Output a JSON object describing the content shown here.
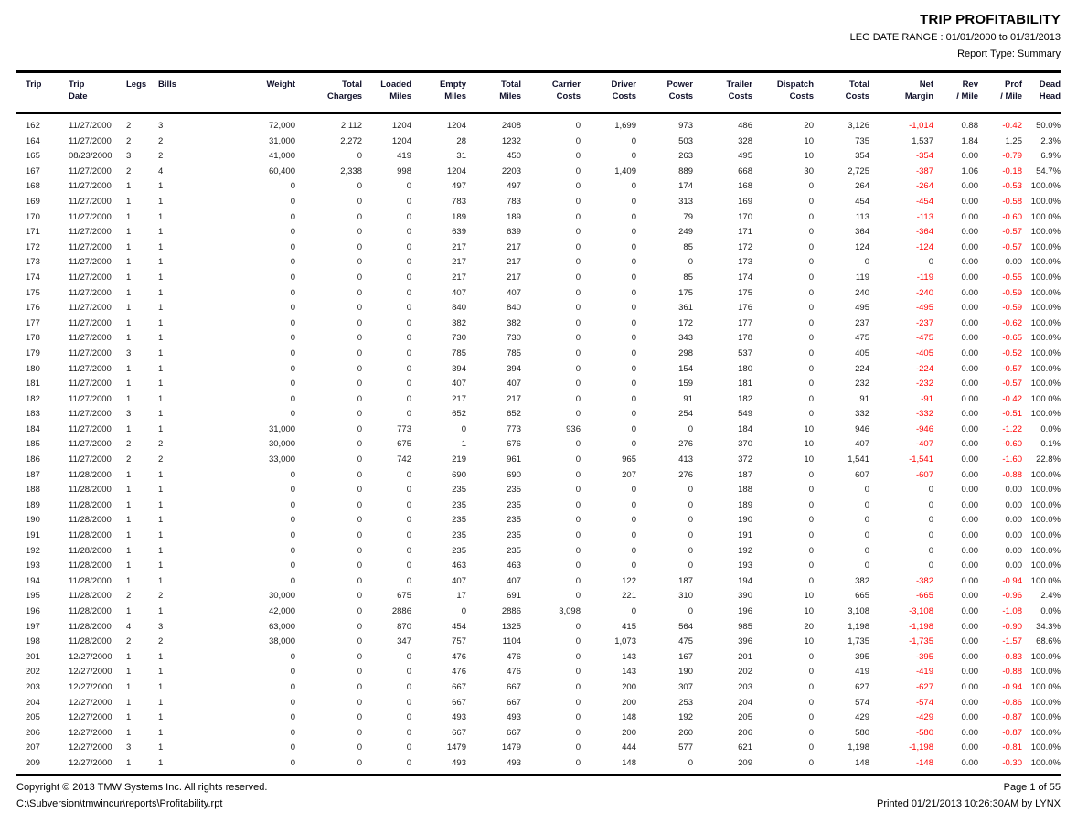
{
  "header": {
    "title": "TRIP PROFITABILITY",
    "date_range": "LEG DATE RANGE : 01/01/2000 to 01/31/2013",
    "report_type": "Report Type: Summary"
  },
  "colors": {
    "negative_value": "#ff0000",
    "text": "#1a1a1a",
    "rule": "#000000"
  },
  "table": {
    "columns": [
      {
        "line1": "Trip",
        "line2": ""
      },
      {
        "line1": "Trip",
        "line2": "Date"
      },
      {
        "line1": "Legs",
        "line2": ""
      },
      {
        "line1": "Bills",
        "line2": ""
      },
      {
        "line1": "Weight",
        "line2": ""
      },
      {
        "line1": "Total",
        "line2": "Charges"
      },
      {
        "line1": "Loaded",
        "line2": "Miles"
      },
      {
        "line1": "Empty",
        "line2": "Miles"
      },
      {
        "line1": "Total",
        "line2": "Miles"
      },
      {
        "line1": "Carrier",
        "line2": "Costs"
      },
      {
        "line1": "Driver",
        "line2": "Costs"
      },
      {
        "line1": "Power",
        "line2": "Costs"
      },
      {
        "line1": "Trailer",
        "line2": "Costs"
      },
      {
        "line1": "Dispatch",
        "line2": "Costs"
      },
      {
        "line1": "Total",
        "line2": "Costs"
      },
      {
        "line1": "Net",
        "line2": "Margin"
      },
      {
        "line1": "Rev",
        "line2": "/ Mile"
      },
      {
        "line1": "Prof",
        "line2": "/ Mile"
      },
      {
        "line1": "Dead",
        "line2": "Head"
      }
    ],
    "rows": [
      [
        "162",
        "11/27/2000",
        "2",
        "3",
        "72,000",
        "2,112",
        "1204",
        "1204",
        "2408",
        "0",
        "1,699",
        "973",
        "486",
        "20",
        "3,126",
        "-1,014",
        "0.88",
        "-0.42",
        "50.0%"
      ],
      [
        "164",
        "11/27/2000",
        "2",
        "2",
        "31,000",
        "2,272",
        "1204",
        "28",
        "1232",
        "0",
        "0",
        "503",
        "328",
        "10",
        "735",
        "1,537",
        "1.84",
        "1.25",
        "2.3%"
      ],
      [
        "165",
        "08/23/2000",
        "3",
        "2",
        "41,000",
        "0",
        "419",
        "31",
        "450",
        "0",
        "0",
        "263",
        "495",
        "10",
        "354",
        "-354",
        "0.00",
        "-0.79",
        "6.9%"
      ],
      [
        "167",
        "11/27/2000",
        "2",
        "4",
        "60,400",
        "2,338",
        "998",
        "1204",
        "2203",
        "0",
        "1,409",
        "889",
        "668",
        "30",
        "2,725",
        "-387",
        "1.06",
        "-0.18",
        "54.7%"
      ],
      [
        "168",
        "11/27/2000",
        "1",
        "1",
        "0",
        "0",
        "0",
        "497",
        "497",
        "0",
        "0",
        "174",
        "168",
        "0",
        "264",
        "-264",
        "0.00",
        "-0.53",
        "100.0%"
      ],
      [
        "169",
        "11/27/2000",
        "1",
        "1",
        "0",
        "0",
        "0",
        "783",
        "783",
        "0",
        "0",
        "313",
        "169",
        "0",
        "454",
        "-454",
        "0.00",
        "-0.58",
        "100.0%"
      ],
      [
        "170",
        "11/27/2000",
        "1",
        "1",
        "0",
        "0",
        "0",
        "189",
        "189",
        "0",
        "0",
        "79",
        "170",
        "0",
        "113",
        "-113",
        "0.00",
        "-0.60",
        "100.0%"
      ],
      [
        "171",
        "11/27/2000",
        "1",
        "1",
        "0",
        "0",
        "0",
        "639",
        "639",
        "0",
        "0",
        "249",
        "171",
        "0",
        "364",
        "-364",
        "0.00",
        "-0.57",
        "100.0%"
      ],
      [
        "172",
        "11/27/2000",
        "1",
        "1",
        "0",
        "0",
        "0",
        "217",
        "217",
        "0",
        "0",
        "85",
        "172",
        "0",
        "124",
        "-124",
        "0.00",
        "-0.57",
        "100.0%"
      ],
      [
        "173",
        "11/27/2000",
        "1",
        "1",
        "0",
        "0",
        "0",
        "217",
        "217",
        "0",
        "0",
        "0",
        "173",
        "0",
        "0",
        "0",
        "0.00",
        "0.00",
        "100.0%"
      ],
      [
        "174",
        "11/27/2000",
        "1",
        "1",
        "0",
        "0",
        "0",
        "217",
        "217",
        "0",
        "0",
        "85",
        "174",
        "0",
        "119",
        "-119",
        "0.00",
        "-0.55",
        "100.0%"
      ],
      [
        "175",
        "11/27/2000",
        "1",
        "1",
        "0",
        "0",
        "0",
        "407",
        "407",
        "0",
        "0",
        "175",
        "175",
        "0",
        "240",
        "-240",
        "0.00",
        "-0.59",
        "100.0%"
      ],
      [
        "176",
        "11/27/2000",
        "1",
        "1",
        "0",
        "0",
        "0",
        "840",
        "840",
        "0",
        "0",
        "361",
        "176",
        "0",
        "495",
        "-495",
        "0.00",
        "-0.59",
        "100.0%"
      ],
      [
        "177",
        "11/27/2000",
        "1",
        "1",
        "0",
        "0",
        "0",
        "382",
        "382",
        "0",
        "0",
        "172",
        "177",
        "0",
        "237",
        "-237",
        "0.00",
        "-0.62",
        "100.0%"
      ],
      [
        "178",
        "11/27/2000",
        "1",
        "1",
        "0",
        "0",
        "0",
        "730",
        "730",
        "0",
        "0",
        "343",
        "178",
        "0",
        "475",
        "-475",
        "0.00",
        "-0.65",
        "100.0%"
      ],
      [
        "179",
        "11/27/2000",
        "3",
        "1",
        "0",
        "0",
        "0",
        "785",
        "785",
        "0",
        "0",
        "298",
        "537",
        "0",
        "405",
        "-405",
        "0.00",
        "-0.52",
        "100.0%"
      ],
      [
        "180",
        "11/27/2000",
        "1",
        "1",
        "0",
        "0",
        "0",
        "394",
        "394",
        "0",
        "0",
        "154",
        "180",
        "0",
        "224",
        "-224",
        "0.00",
        "-0.57",
        "100.0%"
      ],
      [
        "181",
        "11/27/2000",
        "1",
        "1",
        "0",
        "0",
        "0",
        "407",
        "407",
        "0",
        "0",
        "159",
        "181",
        "0",
        "232",
        "-232",
        "0.00",
        "-0.57",
        "100.0%"
      ],
      [
        "182",
        "11/27/2000",
        "1",
        "1",
        "0",
        "0",
        "0",
        "217",
        "217",
        "0",
        "0",
        "91",
        "182",
        "0",
        "91",
        "-91",
        "0.00",
        "-0.42",
        "100.0%"
      ],
      [
        "183",
        "11/27/2000",
        "3",
        "1",
        "0",
        "0",
        "0",
        "652",
        "652",
        "0",
        "0",
        "254",
        "549",
        "0",
        "332",
        "-332",
        "0.00",
        "-0.51",
        "100.0%"
      ],
      [
        "184",
        "11/27/2000",
        "1",
        "1",
        "31,000",
        "0",
        "773",
        "0",
        "773",
        "936",
        "0",
        "0",
        "184",
        "10",
        "946",
        "-946",
        "0.00",
        "-1.22",
        "0.0%"
      ],
      [
        "185",
        "11/27/2000",
        "2",
        "2",
        "30,000",
        "0",
        "675",
        "1",
        "676",
        "0",
        "0",
        "276",
        "370",
        "10",
        "407",
        "-407",
        "0.00",
        "-0.60",
        "0.1%"
      ],
      [
        "186",
        "11/27/2000",
        "2",
        "2",
        "33,000",
        "0",
        "742",
        "219",
        "961",
        "0",
        "965",
        "413",
        "372",
        "10",
        "1,541",
        "-1,541",
        "0.00",
        "-1.60",
        "22.8%"
      ],
      [
        "187",
        "11/28/2000",
        "1",
        "1",
        "0",
        "0",
        "0",
        "690",
        "690",
        "0",
        "207",
        "276",
        "187",
        "0",
        "607",
        "-607",
        "0.00",
        "-0.88",
        "100.0%"
      ],
      [
        "188",
        "11/28/2000",
        "1",
        "1",
        "0",
        "0",
        "0",
        "235",
        "235",
        "0",
        "0",
        "0",
        "188",
        "0",
        "0",
        "0",
        "0.00",
        "0.00",
        "100.0%"
      ],
      [
        "189",
        "11/28/2000",
        "1",
        "1",
        "0",
        "0",
        "0",
        "235",
        "235",
        "0",
        "0",
        "0",
        "189",
        "0",
        "0",
        "0",
        "0.00",
        "0.00",
        "100.0%"
      ],
      [
        "190",
        "11/28/2000",
        "1",
        "1",
        "0",
        "0",
        "0",
        "235",
        "235",
        "0",
        "0",
        "0",
        "190",
        "0",
        "0",
        "0",
        "0.00",
        "0.00",
        "100.0%"
      ],
      [
        "191",
        "11/28/2000",
        "1",
        "1",
        "0",
        "0",
        "0",
        "235",
        "235",
        "0",
        "0",
        "0",
        "191",
        "0",
        "0",
        "0",
        "0.00",
        "0.00",
        "100.0%"
      ],
      [
        "192",
        "11/28/2000",
        "1",
        "1",
        "0",
        "0",
        "0",
        "235",
        "235",
        "0",
        "0",
        "0",
        "192",
        "0",
        "0",
        "0",
        "0.00",
        "0.00",
        "100.0%"
      ],
      [
        "193",
        "11/28/2000",
        "1",
        "1",
        "0",
        "0",
        "0",
        "463",
        "463",
        "0",
        "0",
        "0",
        "193",
        "0",
        "0",
        "0",
        "0.00",
        "0.00",
        "100.0%"
      ],
      [
        "194",
        "11/28/2000",
        "1",
        "1",
        "0",
        "0",
        "0",
        "407",
        "407",
        "0",
        "122",
        "187",
        "194",
        "0",
        "382",
        "-382",
        "0.00",
        "-0.94",
        "100.0%"
      ],
      [
        "195",
        "11/28/2000",
        "2",
        "2",
        "30,000",
        "0",
        "675",
        "17",
        "691",
        "0",
        "221",
        "310",
        "390",
        "10",
        "665",
        "-665",
        "0.00",
        "-0.96",
        "2.4%"
      ],
      [
        "196",
        "11/28/2000",
        "1",
        "1",
        "42,000",
        "0",
        "2886",
        "0",
        "2886",
        "3,098",
        "0",
        "0",
        "196",
        "10",
        "3,108",
        "-3,108",
        "0.00",
        "-1.08",
        "0.0%"
      ],
      [
        "197",
        "11/28/2000",
        "4",
        "3",
        "63,000",
        "0",
        "870",
        "454",
        "1325",
        "0",
        "415",
        "564",
        "985",
        "20",
        "1,198",
        "-1,198",
        "0.00",
        "-0.90",
        "34.3%"
      ],
      [
        "198",
        "11/28/2000",
        "2",
        "2",
        "38,000",
        "0",
        "347",
        "757",
        "1104",
        "0",
        "1,073",
        "475",
        "396",
        "10",
        "1,735",
        "-1,735",
        "0.00",
        "-1.57",
        "68.6%"
      ],
      [
        "201",
        "12/27/2000",
        "1",
        "1",
        "0",
        "0",
        "0",
        "476",
        "476",
        "0",
        "143",
        "167",
        "201",
        "0",
        "395",
        "-395",
        "0.00",
        "-0.83",
        "100.0%"
      ],
      [
        "202",
        "12/27/2000",
        "1",
        "1",
        "0",
        "0",
        "0",
        "476",
        "476",
        "0",
        "143",
        "190",
        "202",
        "0",
        "419",
        "-419",
        "0.00",
        "-0.88",
        "100.0%"
      ],
      [
        "203",
        "12/27/2000",
        "1",
        "1",
        "0",
        "0",
        "0",
        "667",
        "667",
        "0",
        "200",
        "307",
        "203",
        "0",
        "627",
        "-627",
        "0.00",
        "-0.94",
        "100.0%"
      ],
      [
        "204",
        "12/27/2000",
        "1",
        "1",
        "0",
        "0",
        "0",
        "667",
        "667",
        "0",
        "200",
        "253",
        "204",
        "0",
        "574",
        "-574",
        "0.00",
        "-0.86",
        "100.0%"
      ],
      [
        "205",
        "12/27/2000",
        "1",
        "1",
        "0",
        "0",
        "0",
        "493",
        "493",
        "0",
        "148",
        "192",
        "205",
        "0",
        "429",
        "-429",
        "0.00",
        "-0.87",
        "100.0%"
      ],
      [
        "206",
        "12/27/2000",
        "1",
        "1",
        "0",
        "0",
        "0",
        "667",
        "667",
        "0",
        "200",
        "260",
        "206",
        "0",
        "580",
        "-580",
        "0.00",
        "-0.87",
        "100.0%"
      ],
      [
        "207",
        "12/27/2000",
        "3",
        "1",
        "0",
        "0",
        "0",
        "1479",
        "1479",
        "0",
        "444",
        "577",
        "621",
        "0",
        "1,198",
        "-1,198",
        "0.00",
        "-0.81",
        "100.0%"
      ],
      [
        "209",
        "12/27/2000",
        "1",
        "1",
        "0",
        "0",
        "0",
        "493",
        "493",
        "0",
        "148",
        "0",
        "209",
        "0",
        "148",
        "-148",
        "0.00",
        "-0.30",
        "100.0%"
      ]
    ]
  },
  "footer": {
    "copyright": "Copyright © 2013 TMW Systems Inc. All rights reserved.",
    "path": "C:\\Subversion\\tmwincur\\reports\\Profitability.rpt",
    "page": "Page 1 of 55",
    "printed": "Printed 01/21/2013 10:26:30AM by LYNX"
  }
}
